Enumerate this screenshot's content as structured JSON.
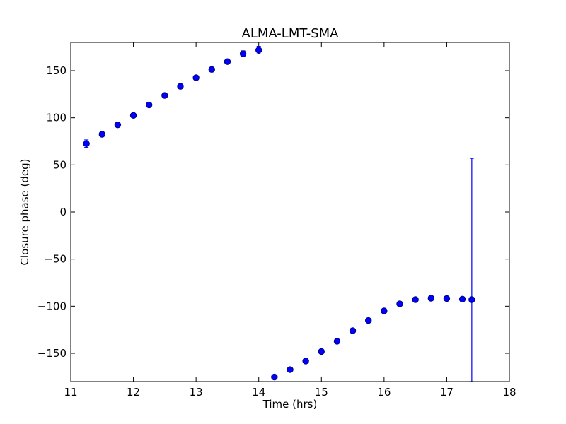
{
  "chart_data": {
    "type": "scatter",
    "title": "ALMA-LMT-SMA",
    "xlabel": "Time (hrs)",
    "ylabel": "Closure phase (deg)",
    "xlim": [
      11,
      18
    ],
    "ylim": [
      -180,
      180
    ],
    "x_ticks": [
      11,
      12,
      13,
      14,
      15,
      16,
      17,
      18
    ],
    "y_ticks": [
      -150,
      -100,
      -50,
      0,
      50,
      100,
      150
    ],
    "x_tick_labels": [
      "11",
      "12",
      "13",
      "14",
      "15",
      "16",
      "17",
      "18"
    ],
    "y_tick_labels": [
      "−150",
      "−100",
      "−50",
      "0",
      "50",
      "100",
      "150"
    ],
    "grid": false,
    "legend": false,
    "marker_color": "#0000ff",
    "marker_edge": "#000080",
    "errorbar_color": "#0000ff",
    "points": [
      {
        "x": 11.25,
        "y": 72.5,
        "err": 4
      },
      {
        "x": 11.5,
        "y": 82.5,
        "err": 2
      },
      {
        "x": 11.75,
        "y": 92.5,
        "err": 2
      },
      {
        "x": 12.0,
        "y": 102.5,
        "err": 2
      },
      {
        "x": 12.25,
        "y": 113.7,
        "err": 2
      },
      {
        "x": 12.5,
        "y": 123.7,
        "err": 2
      },
      {
        "x": 12.75,
        "y": 133.4,
        "err": 2
      },
      {
        "x": 13.0,
        "y": 142.5,
        "err": 2
      },
      {
        "x": 13.25,
        "y": 151.3,
        "err": 2
      },
      {
        "x": 13.5,
        "y": 159.6,
        "err": 2
      },
      {
        "x": 13.75,
        "y": 168.0,
        "err": 3
      },
      {
        "x": 14.0,
        "y": 171.8,
        "err": 4
      },
      {
        "x": 14.25,
        "y": -175.2,
        "err": 2
      },
      {
        "x": 14.5,
        "y": -167.3,
        "err": 2
      },
      {
        "x": 14.75,
        "y": -158.2,
        "err": 2
      },
      {
        "x": 15.0,
        "y": -148.1,
        "err": 2
      },
      {
        "x": 15.25,
        "y": -137.2,
        "err": 2
      },
      {
        "x": 15.5,
        "y": -126.0,
        "err": 2
      },
      {
        "x": 15.75,
        "y": -115.2,
        "err": 2
      },
      {
        "x": 16.0,
        "y": -105.0,
        "err": 2
      },
      {
        "x": 16.25,
        "y": -97.5,
        "err": 2
      },
      {
        "x": 16.5,
        "y": -93.0,
        "err": 2
      },
      {
        "x": 16.75,
        "y": -91.5,
        "err": 2
      },
      {
        "x": 17.0,
        "y": -91.8,
        "err": 2
      },
      {
        "x": 17.25,
        "y": -92.5,
        "err": 2
      },
      {
        "x": 17.4,
        "y": -93.0,
        "err": 150
      }
    ]
  }
}
